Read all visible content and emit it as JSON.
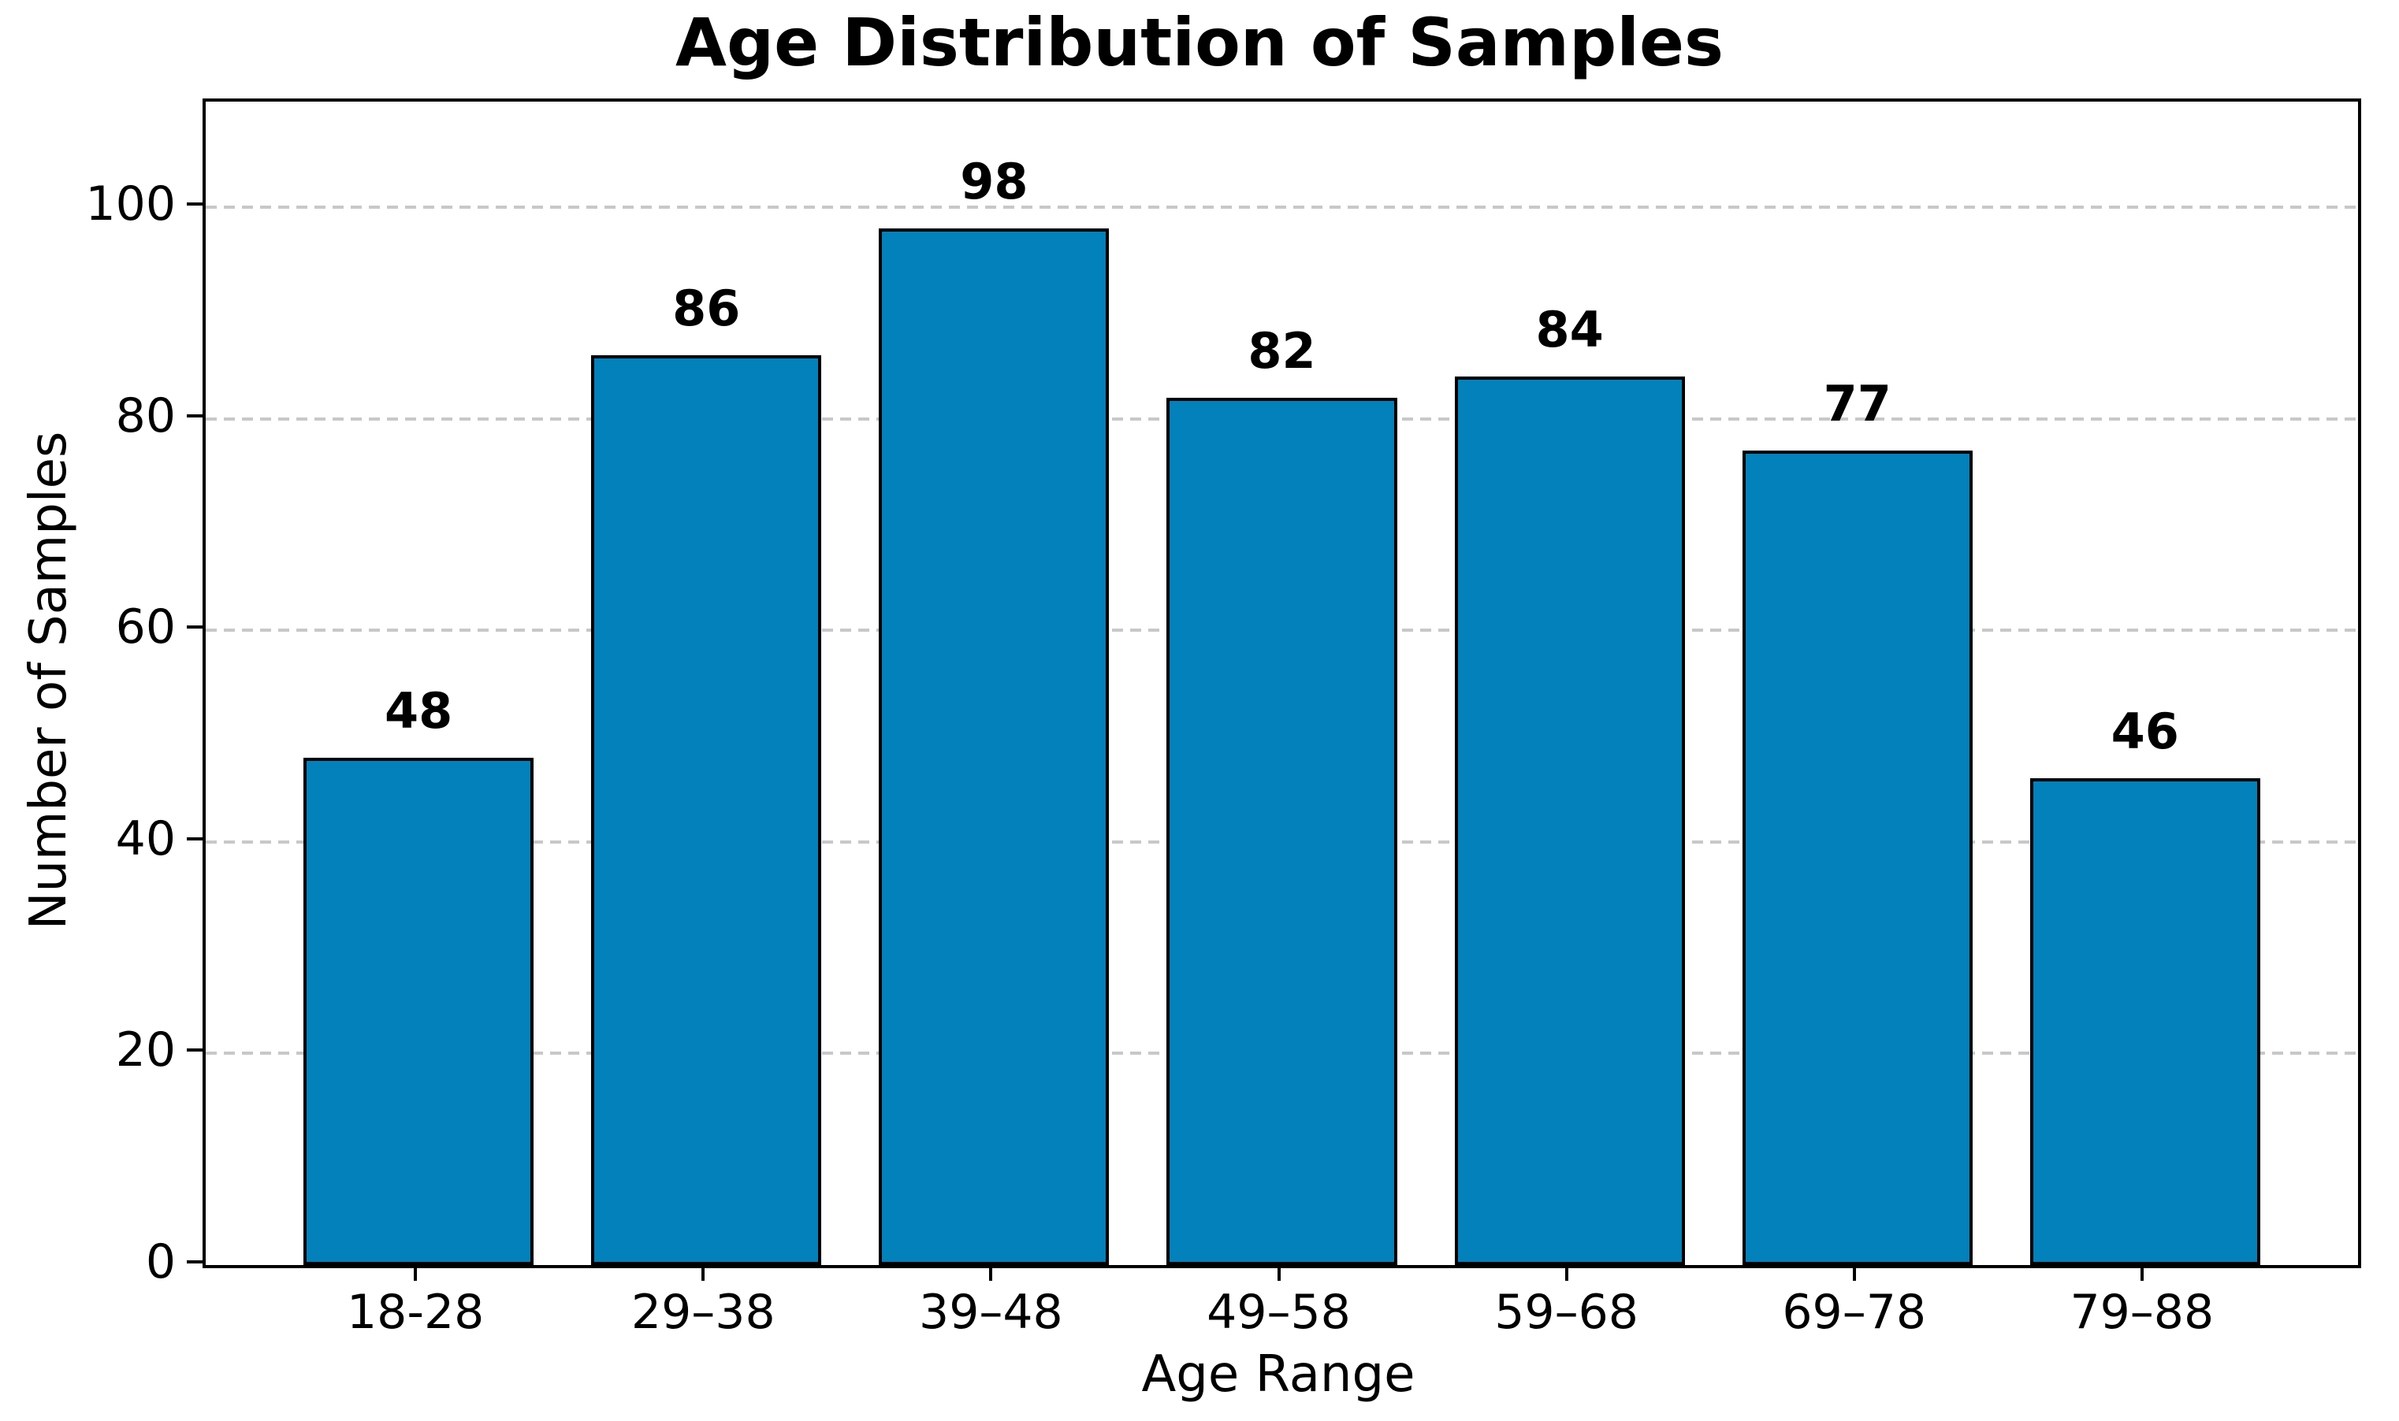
{
  "chart_data": {
    "type": "bar",
    "title": "Age Distribution of Samples",
    "xlabel": "Age Range",
    "ylabel": "Number of Samples",
    "categories": [
      "18-28",
      "29–38",
      "39–48",
      "49–58",
      "59–68",
      "69–78",
      "79–88"
    ],
    "values": [
      48,
      86,
      98,
      82,
      84,
      77,
      46
    ],
    "y_ticks": [
      0,
      20,
      40,
      60,
      80,
      100
    ],
    "ylim": [
      0,
      110
    ],
    "grid": "horizontal-dashed",
    "legend_position": "none",
    "colors": {
      "bar_fill": "#0281BA",
      "bar_edge": "#000000",
      "gridline": "#c8c8c8",
      "axis": "#000000",
      "text": "#000000",
      "background": "#ffffff"
    }
  }
}
